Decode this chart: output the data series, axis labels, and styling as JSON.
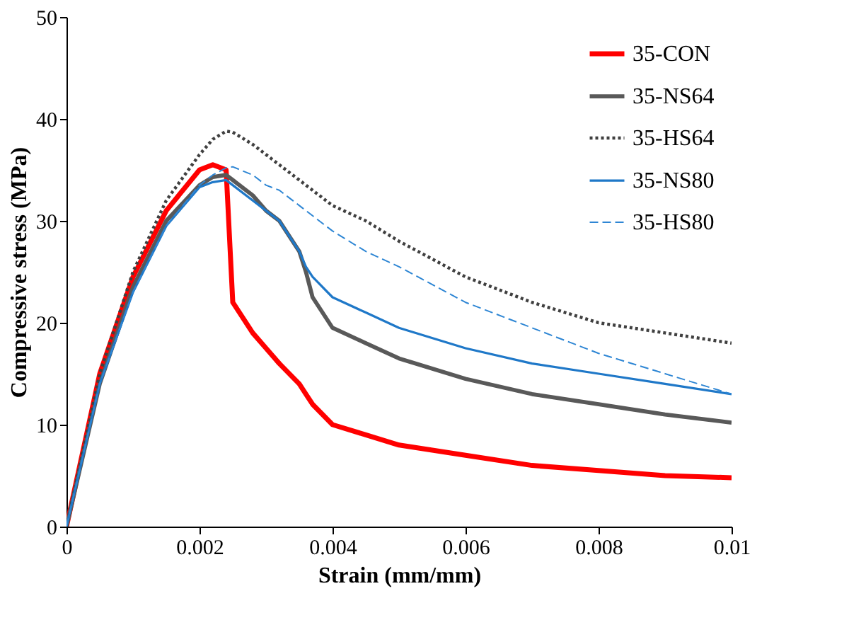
{
  "chart_data": {
    "type": "line",
    "xlabel": "Strain (mm/mm)",
    "ylabel": "Compressive stress (MPa)",
    "xlim": [
      0,
      0.01
    ],
    "xticks": [
      0,
      0.002,
      0.004,
      0.006,
      0.008,
      0.01
    ],
    "ylim": [
      0,
      50
    ],
    "yticks": [
      0,
      10,
      20,
      30,
      40,
      50
    ],
    "grid": false,
    "legend": "top right",
    "marker": "none",
    "x": [
      0,
      0.0005,
      0.001,
      0.0015,
      0.002,
      0.0022,
      0.0024,
      0.0025,
      0.0028,
      0.003,
      0.0032,
      0.0035,
      0.0036,
      0.0037,
      0.004,
      0.0045,
      0.005,
      0.006,
      0.007,
      0.008,
      0.009,
      0.01
    ],
    "series": [
      {
        "name": "35-CON",
        "color": "#ff0000",
        "line_style": "solid",
        "values": [
          0,
          15,
          24.5,
          31,
          35,
          35.5,
          35,
          22,
          19,
          17.5,
          16,
          14,
          13,
          12,
          10,
          9,
          8,
          7,
          6,
          5.5,
          5,
          4.8
        ]
      },
      {
        "name": "35-NS64",
        "color": "#595959",
        "line_style": "solid",
        "values": [
          0,
          14,
          23.5,
          30,
          33.5,
          34.3,
          34.5,
          34,
          32.5,
          31,
          30,
          27,
          25,
          22.5,
          19.5,
          18,
          16.5,
          14.5,
          13,
          12,
          11,
          10.2
        ]
      },
      {
        "name": "35-HS64",
        "color": "#404040",
        "line_style": "dotted",
        "values": [
          0,
          15,
          25,
          32,
          36.5,
          38,
          38.8,
          38.7,
          37.5,
          36.5,
          35.5,
          34,
          33.5,
          33,
          31.5,
          30,
          28,
          24.5,
          22,
          20,
          19,
          18
        ]
      },
      {
        "name": "35-NS80",
        "color": "#1f78c8",
        "line_style": "solid",
        "values": [
          0,
          14,
          23,
          29.5,
          33.3,
          33.8,
          34,
          33.5,
          32,
          31,
          30,
          27,
          25.5,
          24.5,
          22.5,
          21,
          19.5,
          17.5,
          16,
          15,
          14,
          13
        ]
      },
      {
        "name": "35-HS80",
        "color": "#2e86d4",
        "line_style": "dashed",
        "values": [
          0,
          14,
          23,
          29.5,
          33.5,
          34.5,
          35.2,
          35.3,
          34.5,
          33.5,
          33,
          31.5,
          31,
          30.5,
          29,
          27,
          25.5,
          22,
          19.5,
          17,
          15,
          13
        ]
      }
    ]
  }
}
